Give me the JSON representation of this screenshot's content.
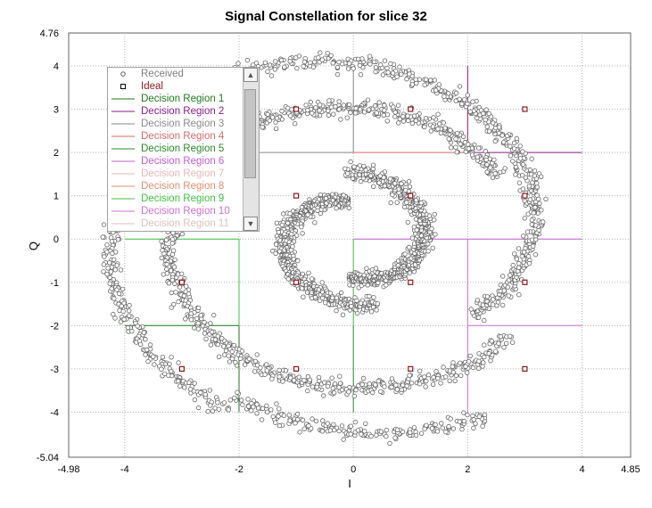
{
  "chart_data": {
    "type": "scatter",
    "title": "Signal Constellation for slice 32",
    "xlabel": "I",
    "ylabel": "Q",
    "xlim": [
      -4.98,
      4.85
    ],
    "ylim": [
      -5.04,
      4.76
    ],
    "xticks": [
      -4,
      -2,
      0,
      2,
      4
    ],
    "yticks": [
      -4,
      -3,
      -2,
      -1,
      0,
      1,
      2,
      3,
      4
    ],
    "xtick_labels": [
      "-4.98",
      "-4",
      "-2",
      "0",
      "2",
      "4",
      "4.85"
    ],
    "ytick_labels": [
      "4.76",
      "4",
      "3",
      "2",
      "1",
      "0",
      "-1",
      "-2",
      "-3",
      "-4",
      "-5.04"
    ],
    "grid": true,
    "legend_position": "top-left",
    "legend": [
      {
        "label": "Received",
        "color": "#606060",
        "marker": "circle"
      },
      {
        "label": "Ideal",
        "color": "#8b1a1a",
        "marker": "square"
      },
      {
        "label": "Decision Region 1",
        "color": "#1f7a1f",
        "marker": "line"
      },
      {
        "label": "Decision Region 2",
        "color": "#8a1a8a",
        "marker": "line"
      },
      {
        "label": "Decision Region 3",
        "color": "#8a8a8a",
        "marker": "line"
      },
      {
        "label": "Decision Region 4",
        "color": "#d96a6a",
        "marker": "line"
      },
      {
        "label": "Decision Region 5",
        "color": "#2a8a2a",
        "marker": "line"
      },
      {
        "label": "Decision Region 6",
        "color": "#c060d0",
        "marker": "line"
      },
      {
        "label": "Decision Region 7",
        "color": "#e8b8b8",
        "marker": "line"
      },
      {
        "label": "Decision Region 8",
        "color": "#e09070",
        "marker": "line"
      },
      {
        "label": "Decision Region 9",
        "color": "#40c040",
        "marker": "line"
      },
      {
        "label": "Decision Region 10",
        "color": "#d070d0",
        "marker": "line"
      },
      {
        "label": "Decision Region 11",
        "color": "#e0c0c0",
        "marker": "line"
      }
    ],
    "series": [
      {
        "name": "Ideal",
        "points": [
          [
            -3,
            3
          ],
          [
            -1,
            3
          ],
          [
            1,
            3
          ],
          [
            3,
            3
          ],
          [
            -3,
            1
          ],
          [
            -1,
            1
          ],
          [
            1,
            1
          ],
          [
            3,
            1
          ],
          [
            -3,
            -1
          ],
          [
            -1,
            -1
          ],
          [
            1,
            -1
          ],
          [
            3,
            -1
          ],
          [
            -3,
            -3
          ],
          [
            -1,
            -3
          ],
          [
            1,
            -3
          ],
          [
            3,
            -3
          ]
        ]
      },
      {
        "name": "Received",
        "shape": "spiral",
        "segments": [
          {
            "r_start": 0.9,
            "r_end": 1.55,
            "angle_start_deg": 95,
            "angle_end_deg": 285
          },
          {
            "r_start": 0.9,
            "r_end": 1.55,
            "angle_start_deg": -95,
            "angle_end_deg": 95
          },
          {
            "r_start": 2.9,
            "r_end": 3.55,
            "angle_start_deg": 30,
            "angle_end_deg": 320
          },
          {
            "r_start": 2.7,
            "r_end": 4.35,
            "angle_start_deg": -40,
            "angle_end_deg": 120
          },
          {
            "r_start": 4.0,
            "r_end": 4.5,
            "angle_start_deg": 120,
            "angle_end_deg": 240
          },
          {
            "r_start": 4.2,
            "r_end": 4.7,
            "angle_start_deg": 240,
            "angle_end_deg": 300
          }
        ]
      }
    ],
    "decision_region_lines": [
      {
        "region": "Decision Region 1",
        "points": [
          [
            -4,
            -2
          ],
          [
            -2,
            -2
          ],
          [
            -2,
            -4
          ]
        ]
      },
      {
        "region": "Decision Region 2",
        "points": [
          [
            2,
            4
          ],
          [
            2,
            2
          ],
          [
            4,
            2
          ]
        ]
      },
      {
        "region": "Decision Region 3",
        "points": [
          [
            -2,
            4
          ],
          [
            -2,
            2
          ],
          [
            0,
            2
          ],
          [
            0,
            4
          ]
        ]
      },
      {
        "region": "Decision Region 4",
        "points": [
          [
            0,
            2
          ],
          [
            2,
            2
          ]
        ]
      },
      {
        "region": "Decision Region 5",
        "points": [
          [
            0,
            -2
          ],
          [
            0,
            -4
          ]
        ]
      },
      {
        "region": "Decision Region 6",
        "points": [
          [
            0,
            0
          ],
          [
            4,
            0
          ]
        ]
      },
      {
        "region": "Decision Region 9",
        "points": [
          [
            -4,
            0
          ],
          [
            -2,
            0
          ],
          [
            -2,
            -2
          ]
        ]
      },
      {
        "region": "Decision Region 9",
        "points": [
          [
            0,
            0
          ],
          [
            0,
            -2
          ]
        ]
      },
      {
        "region": "Decision Region 10",
        "points": [
          [
            2,
            0
          ],
          [
            2,
            -4
          ]
        ]
      },
      {
        "region": "Decision Region 10",
        "points": [
          [
            2,
            -2
          ],
          [
            4,
            -2
          ]
        ]
      }
    ]
  },
  "legend_ui": {
    "scroll_up": "▲",
    "scroll_down": "▼"
  }
}
